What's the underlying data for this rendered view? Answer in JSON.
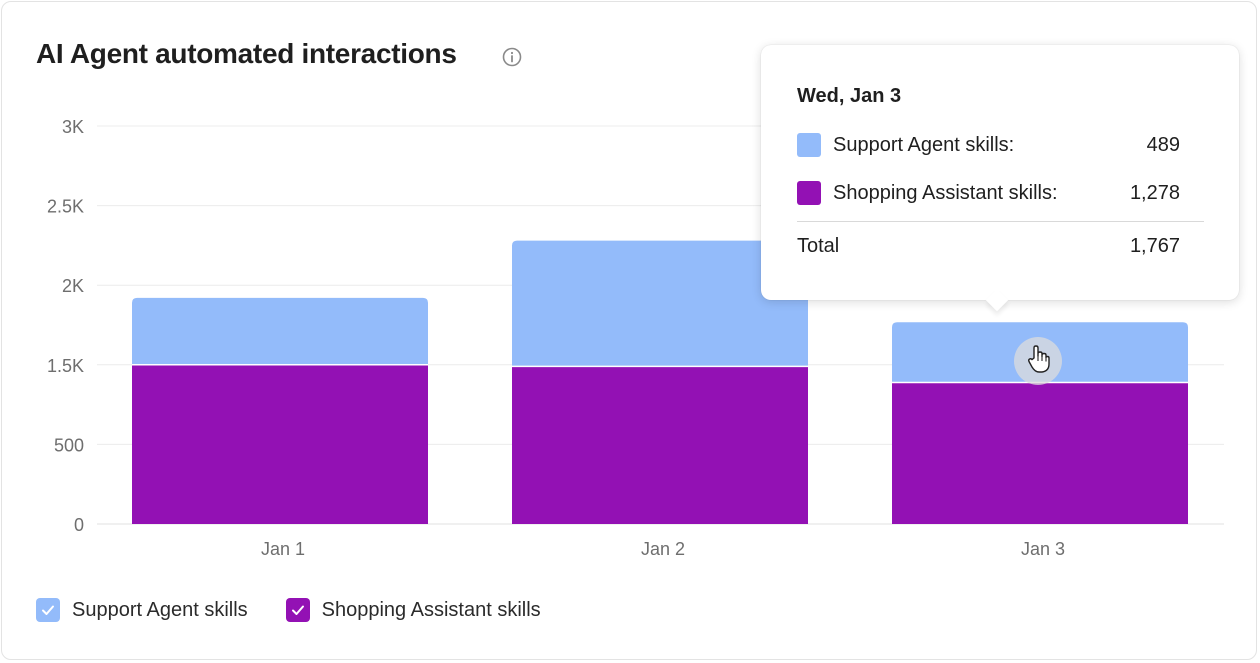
{
  "title": "AI Agent automated interactions",
  "info_icon": "info-circle-icon",
  "chart_data": {
    "type": "bar",
    "stacked": true,
    "categories": [
      "Jan 1",
      "Jan 2",
      "Jan 3"
    ],
    "series": [
      {
        "name": "Shopping Assistant skills",
        "color": "#9311b4",
        "values": [
          1500,
          1480,
          1278
        ]
      },
      {
        "name": "Support Agent skills",
        "color": "#93bbfa",
        "values": [
          420,
          800,
          489
        ]
      }
    ],
    "y_ticks": [
      {
        "value": 0,
        "label": "0"
      },
      {
        "value": 500,
        "label": "500"
      },
      {
        "value": 1500,
        "label": "1.5K"
      },
      {
        "value": 2000,
        "label": "2K"
      },
      {
        "value": 2500,
        "label": "2.5K"
      },
      {
        "value": 3000,
        "label": "3K"
      }
    ],
    "ylim": [
      0,
      3000
    ],
    "grid": true,
    "legend_position": "bottom-left"
  },
  "legend": [
    {
      "label": "Support Agent skills",
      "color": "#93bbfa",
      "checked": true
    },
    {
      "label": "Shopping Assistant skills",
      "color": "#9311b4",
      "checked": true
    }
  ],
  "tooltip": {
    "date": "Wed, Jan 3",
    "rows": [
      {
        "label": "Support Agent skills:",
        "value": "489",
        "color": "#93bbfa"
      },
      {
        "label": "Shopping Assistant skills:",
        "value": "1,278",
        "color": "#9311b4"
      }
    ],
    "total_label": "Total",
    "total_value": "1,767"
  },
  "cursor_icon": "hand-pointer-icon"
}
